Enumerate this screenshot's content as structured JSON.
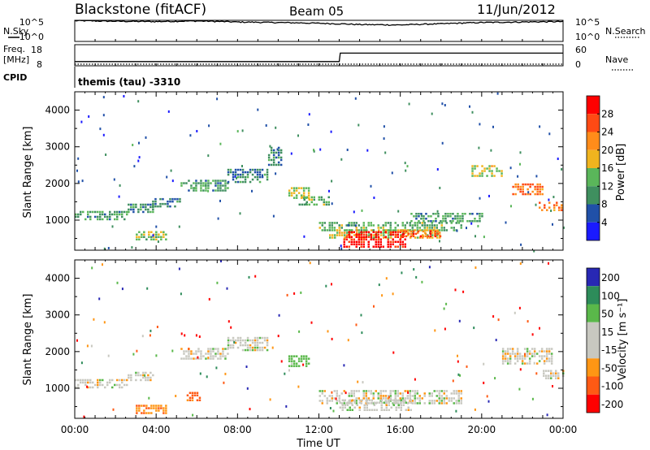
{
  "header": {
    "station": "Blackstone (fitACF)",
    "beam": "Beam 05",
    "date": "11/Jun/2012"
  },
  "side_labels": {
    "nsky": "N.Sky",
    "freq_line1": "Freq.",
    "freq_line2": "[MHz]",
    "cpid": "CPID",
    "nsearch": "N.Search",
    "nave": "Nave"
  },
  "cpid_text": "themis (tau) -3310",
  "x_axis": {
    "label": "Time UT",
    "ticks": [
      "00:00",
      "04:00",
      "08:00",
      "12:00",
      "16:00",
      "20:00",
      "00:00"
    ]
  },
  "noise_panel": {
    "left_ticks": [
      "10^5",
      "10^0"
    ],
    "right_ticks": [
      "10^5",
      "10^0"
    ]
  },
  "freq_panel": {
    "left_ticks": [
      "18",
      "8"
    ],
    "right_ticks": [
      "60",
      "0"
    ]
  },
  "range_axis": {
    "label": "Slant Range [km]",
    "ticks": [
      "1000",
      "2000",
      "3000",
      "4000"
    ]
  },
  "power_colorbar": {
    "label": "Power [dB]",
    "ticks": [
      "4",
      "8",
      "12",
      "16",
      "20",
      "24",
      "28"
    ]
  },
  "velocity_colorbar": {
    "label": "Velocity [m s⁻¹]",
    "ticks": [
      "200",
      "100",
      "50",
      "15",
      "-15",
      "-50",
      "-100",
      "-200"
    ]
  },
  "colors": {
    "power_scale": [
      "#1a1aff",
      "#2050a8",
      "#3f8f5f",
      "#5ab65a",
      "#f0b41e",
      "#ff8c1a",
      "#ff4a14",
      "#ff0000"
    ],
    "velocity_scale": [
      "#2828b4",
      "#2d8c5a",
      "#5ab84a",
      "#c8c8c0",
      "#c8c8c0",
      "#ff9614",
      "#ff5a14",
      "#ff0000"
    ]
  },
  "chart_data": [
    {
      "type": "line",
      "title": "Blackstone (fitACF)",
      "series": [
        {
          "name": "N.Sky",
          "scale": "log",
          "x": [
            0,
            2,
            4,
            6,
            8,
            10,
            12,
            14,
            16,
            18,
            20,
            22,
            24
          ],
          "values": [
            80000,
            60000,
            50000,
            70000,
            40000,
            30000,
            20000,
            10000,
            8000,
            15000,
            30000,
            40000,
            50000
          ]
        },
        {
          "name": "N.Search",
          "scale": "log",
          "x": [
            0,
            24
          ],
          "values": [
            1,
            1
          ]
        }
      ],
      "xlim": [
        0,
        24
      ],
      "ylim": [
        1,
        100000
      ]
    },
    {
      "type": "line",
      "series": [
        {
          "name": "Freq.",
          "unit": "MHz",
          "x": [
            0,
            0.05,
            13.0,
            13.05,
            24
          ],
          "values": [
            10,
            10,
            10,
            14,
            14
          ]
        },
        {
          "name": "Nave",
          "x": [
            0,
            24
          ],
          "values": [
            0,
            0
          ]
        }
      ],
      "xlim": [
        0,
        24
      ],
      "ylim": [
        8,
        18
      ],
      "ylim_right": [
        0,
        60
      ]
    },
    {
      "type": "heatmap",
      "xlabel": "Time UT",
      "ylabel": "Slant Range [km]",
      "colorbar": "Power [dB]",
      "xlim": [
        0,
        24
      ],
      "ylim": [
        180,
        4500
      ],
      "clim": [
        0,
        30
      ],
      "regions": [
        {
          "t0": 0.0,
          "t1": 2.6,
          "r0": 1050,
          "r1": 1250,
          "value": 11
        },
        {
          "t0": 2.6,
          "t1": 3.8,
          "r0": 1250,
          "r1": 1450,
          "value": 9
        },
        {
          "t0": 3.8,
          "t1": 5.2,
          "r0": 1400,
          "r1": 1600,
          "value": 8
        },
        {
          "t0": 5.2,
          "t1": 7.5,
          "r0": 1800,
          "r1": 2100,
          "value": 10
        },
        {
          "t0": 7.5,
          "t1": 9.5,
          "r0": 2050,
          "r1": 2400,
          "value": 9
        },
        {
          "t0": 9.5,
          "t1": 10.2,
          "r0": 2500,
          "r1": 3000,
          "value": 8
        },
        {
          "t0": 3.0,
          "t1": 4.5,
          "r0": 500,
          "r1": 700,
          "value": 14
        },
        {
          "t0": 10.5,
          "t1": 11.5,
          "r0": 1600,
          "r1": 1900,
          "value": 15
        },
        {
          "t0": 11.0,
          "t1": 12.5,
          "r0": 1400,
          "r1": 1650,
          "value": 12
        },
        {
          "t0": 12.0,
          "t1": 19.0,
          "r0": 750,
          "r1": 950,
          "value": 12
        },
        {
          "t0": 12.5,
          "t1": 18.0,
          "r0": 500,
          "r1": 750,
          "value": 16
        },
        {
          "t0": 13.2,
          "t1": 16.3,
          "r0": 300,
          "r1": 700,
          "value": 28
        },
        {
          "t0": 16.0,
          "t1": 18.0,
          "r0": 580,
          "r1": 720,
          "value": 24
        },
        {
          "t0": 16.5,
          "t1": 20.0,
          "r0": 950,
          "r1": 1200,
          "value": 10
        },
        {
          "t0": 19.5,
          "t1": 21.0,
          "r0": 2200,
          "r1": 2500,
          "value": 15
        },
        {
          "t0": 21.5,
          "t1": 23.0,
          "r0": 1700,
          "r1": 2000,
          "value": 22
        },
        {
          "t0": 22.8,
          "t1": 24.0,
          "r0": 1250,
          "r1": 1500,
          "value": 22
        }
      ]
    },
    {
      "type": "heatmap",
      "xlabel": "Time UT",
      "ylabel": "Slant Range [km]",
      "colorbar": "Velocity [m s⁻¹]",
      "xlim": [
        0,
        24
      ],
      "ylim": [
        180,
        4500
      ],
      "clim": [
        -250,
        250
      ],
      "regions": [
        {
          "t0": 0.0,
          "t1": 2.6,
          "r0": 1050,
          "r1": 1250,
          "value": 0
        },
        {
          "t0": 2.6,
          "t1": 3.8,
          "r0": 1250,
          "r1": 1450,
          "value": 0
        },
        {
          "t0": 5.2,
          "t1": 7.5,
          "r0": 1800,
          "r1": 2100,
          "value": 0
        },
        {
          "t0": 7.5,
          "t1": 9.5,
          "r0": 2050,
          "r1": 2400,
          "value": 0
        },
        {
          "t0": 3.0,
          "t1": 4.5,
          "r0": 300,
          "r1": 550,
          "value": -40
        },
        {
          "t0": 5.5,
          "t1": 6.2,
          "r0": 700,
          "r1": 900,
          "value": -60
        },
        {
          "t0": 10.5,
          "t1": 11.5,
          "r0": 1600,
          "r1": 1900,
          "value": 30
        },
        {
          "t0": 12.0,
          "t1": 19.0,
          "r0": 600,
          "r1": 950,
          "value": 0
        },
        {
          "t0": 13.0,
          "t1": 16.5,
          "r0": 400,
          "r1": 700,
          "value": 0
        },
        {
          "t0": 21.0,
          "t1": 23.5,
          "r0": 1700,
          "r1": 2100,
          "value": 0
        },
        {
          "t0": 23.0,
          "t1": 24.0,
          "r0": 1250,
          "r1": 1500,
          "value": 0
        }
      ]
    }
  ]
}
